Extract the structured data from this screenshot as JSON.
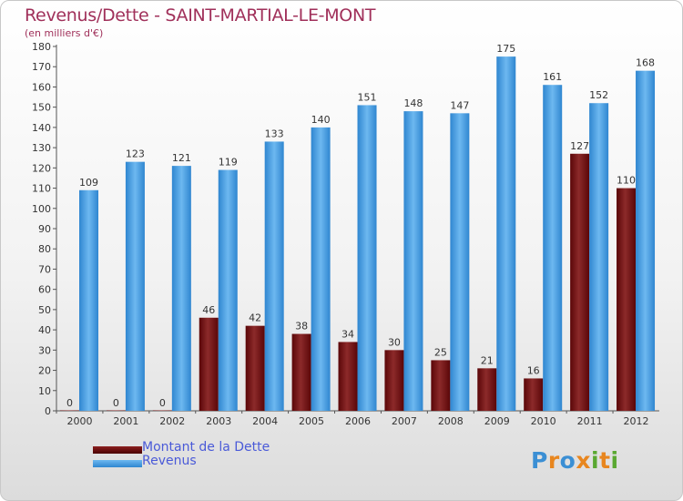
{
  "title": "Revenus/Dette - SAINT-MARTIAL-LE-MONT",
  "subtitle": "(en milliers d'€)",
  "logo_text": "Proxiti",
  "colors": {
    "dette": "#7a1418",
    "revenus": "#3d93d9",
    "title": "#a0305a",
    "legend_text": "#4a5ad8"
  },
  "legend": [
    {
      "label": "Montant de la Dette",
      "color": "#6b0a0a"
    },
    {
      "label": "Revenus",
      "color": "#3d93d9"
    }
  ],
  "chart_data": {
    "type": "bar",
    "categories": [
      "2000",
      "2001",
      "2002",
      "2003",
      "2004",
      "2005",
      "2006",
      "2007",
      "2008",
      "2009",
      "2010",
      "2011",
      "2012"
    ],
    "series": [
      {
        "name": "Montant de la Dette",
        "values": [
          0,
          0,
          0,
          46,
          42,
          38,
          34,
          30,
          25,
          21,
          16,
          127,
          110
        ]
      },
      {
        "name": "Revenus",
        "values": [
          109,
          123,
          121,
          119,
          133,
          140,
          151,
          148,
          147,
          175,
          161,
          152,
          168
        ]
      }
    ],
    "ylim": [
      0,
      180
    ],
    "yticks": [
      0,
      10,
      20,
      30,
      40,
      50,
      60,
      70,
      80,
      90,
      100,
      110,
      120,
      130,
      140,
      150,
      160,
      170,
      180
    ],
    "grid": false,
    "legend_position": "bottom-left"
  }
}
